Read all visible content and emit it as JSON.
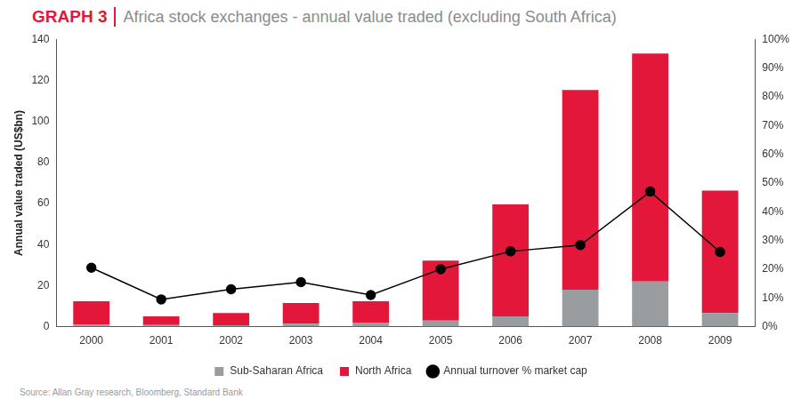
{
  "chart_data": {
    "type": "bar",
    "title": "GRAPH 3",
    "subtitle": "Africa stock exchanges - annual value traded (excluding South Africa)",
    "y_label": "Annual value traded (US$bn)",
    "annotations": [
      "Source: Allan Gray research, Bloomberg, Standard Bank"
    ],
    "categories": [
      "2000",
      "2001",
      "2002",
      "2003",
      "2004",
      "2005",
      "2006",
      "2007",
      "2008",
      "2009"
    ],
    "stacked": true,
    "series": [
      {
        "name": "Sub-Saharan Africa",
        "color": "#999da0",
        "values": [
          1,
          0.8,
          0.7,
          1.5,
          2,
          3,
          5,
          18,
          22,
          6.6
        ]
      },
      {
        "name": "North Africa",
        "color": "#e2173a",
        "values": [
          11.4,
          4.2,
          5.9,
          10,
          10.4,
          29.2,
          54.6,
          97.3,
          111,
          59.7
        ]
      },
      {
        "name": "Annual turnover % market cap",
        "type": "line",
        "color": "#000000",
        "marker": "circle",
        "axis": "y2",
        "values": [
          20.5,
          9.5,
          13,
          15.5,
          11,
          20,
          26.2,
          28.4,
          47,
          26
        ]
      }
    ],
    "ylim": [
      0,
      140
    ],
    "yticks": [
      0,
      20,
      40,
      60,
      80,
      100,
      120,
      140
    ],
    "y2lim": [
      0,
      100
    ],
    "y2ticks": [
      {
        "value": 0,
        "label": "0%"
      },
      {
        "value": 10,
        "label": "10%"
      },
      {
        "value": 20,
        "label": "20%"
      },
      {
        "value": 30,
        "label": "30%"
      },
      {
        "value": 40,
        "label": "40%"
      },
      {
        "value": 50,
        "label": "50%"
      },
      {
        "value": 60,
        "label": "60%"
      },
      {
        "value": 70,
        "label": "70%"
      },
      {
        "value": 80,
        "label": "80%"
      },
      {
        "value": 90,
        "label": "90%"
      },
      {
        "value": 100,
        "label": "100%"
      }
    ],
    "grid": false,
    "legend": "bottom"
  }
}
